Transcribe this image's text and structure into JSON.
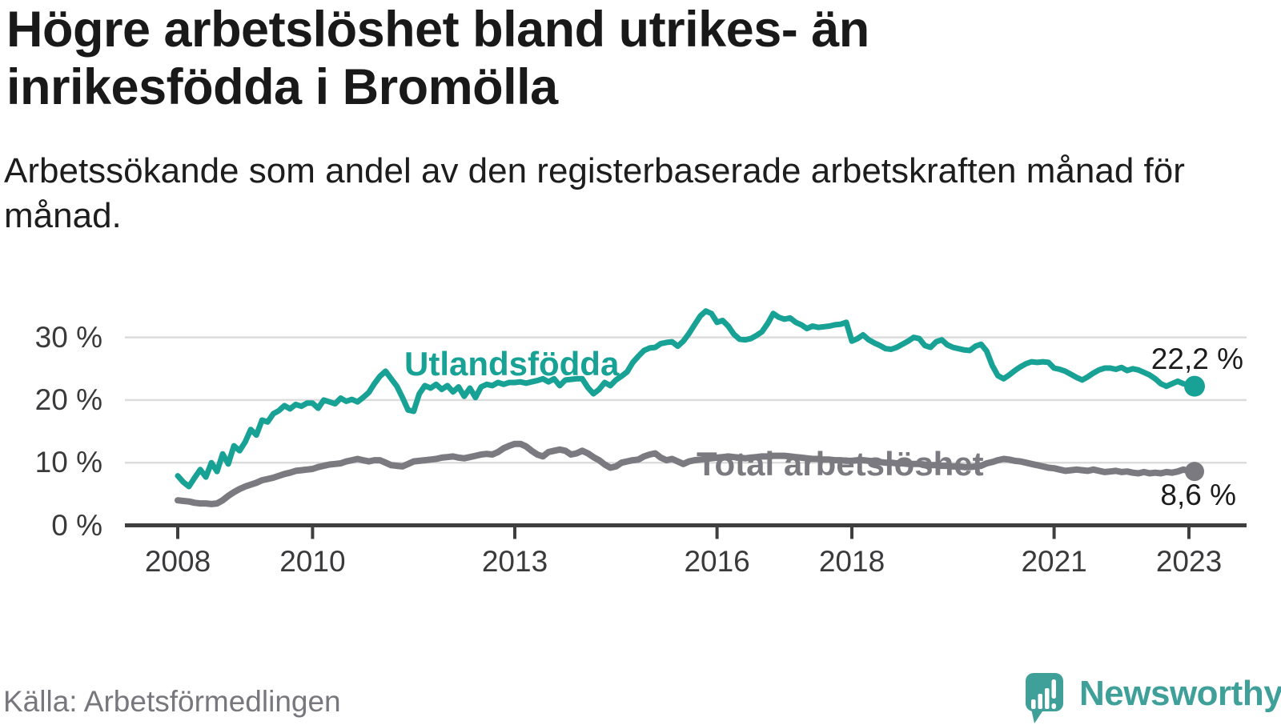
{
  "header": {
    "title": "Högre arbetslöshet bland utrikes- än inrikesfödda i Bromölla",
    "subtitle": "Arbetssökande som andel av den registerbaserade arbetskraften månad för månad."
  },
  "footer": {
    "source": "Källa: Arbetsförmedlingen",
    "brand": "Newsworthy",
    "brand_color": "#3fa09a",
    "brand_icon": "newsworthy-speech-bubble-bar-chart-icon"
  },
  "chart_data": {
    "type": "line",
    "unit": "%",
    "grid": "horizontal",
    "x_axis": {
      "start_year": 2008,
      "months_per_point": 1,
      "tick_years": [
        2008,
        2010,
        2013,
        2016,
        2018,
        2021,
        2023
      ],
      "tick_labels": [
        "2008",
        "2010",
        "2013",
        "2016",
        "2018",
        "2021",
        "2023"
      ]
    },
    "y_axis": {
      "ticks": [
        0,
        10,
        20,
        30
      ],
      "tick_labels": [
        "0 %",
        "10 %",
        "20 %",
        "30 %"
      ],
      "range": [
        0,
        36.5
      ]
    },
    "series": [
      {
        "name": "Utlandsfödda",
        "color": "#17a295",
        "start": "2008-01",
        "end": "2023-02",
        "end_value": 22.2,
        "end_label": "22,2 %",
        "values": [
          7.9,
          6.9,
          6.2,
          7.6,
          8.9,
          7.7,
          10.0,
          8.6,
          11.4,
          9.8,
          12.7,
          11.9,
          13.3,
          15.3,
          14.4,
          16.8,
          16.5,
          17.8,
          18.3,
          19.1,
          18.6,
          19.3,
          19.0,
          19.5,
          19.5,
          18.7,
          20.0,
          19.7,
          19.4,
          20.3,
          19.8,
          20.1,
          19.7,
          20.4,
          21.2,
          22.6,
          23.8,
          24.6,
          23.4,
          22.2,
          20.4,
          18.4,
          18.2,
          21.0,
          22.3,
          21.9,
          22.5,
          21.7,
          22.3,
          21.3,
          22.1,
          20.6,
          21.9,
          20.4,
          22.1,
          22.5,
          22.3,
          22.8,
          22.5,
          22.8,
          22.8,
          22.9,
          22.7,
          22.9,
          23.1,
          23.4,
          22.9,
          23.4,
          22.3,
          23.2,
          23.3,
          23.4,
          23.4,
          22.0,
          21.0,
          21.7,
          22.8,
          22.3,
          23.2,
          23.8,
          24.5,
          26.0,
          27.0,
          27.9,
          28.3,
          28.4,
          29.0,
          29.2,
          29.3,
          28.6,
          29.4,
          30.6,
          32.0,
          33.4,
          34.2,
          33.8,
          32.4,
          32.7,
          31.8,
          30.5,
          29.7,
          29.6,
          29.8,
          30.3,
          30.9,
          32.2,
          33.8,
          33.2,
          32.9,
          33.1,
          32.4,
          32.0,
          31.4,
          31.8,
          31.6,
          31.7,
          31.8,
          32.0,
          32.1,
          32.4,
          29.4,
          29.8,
          30.4,
          29.6,
          29.1,
          28.7,
          28.2,
          28.1,
          28.4,
          28.9,
          29.4,
          30.0,
          29.8,
          28.7,
          28.4,
          29.3,
          29.6,
          28.8,
          28.4,
          28.2,
          28.0,
          27.9,
          28.6,
          28.9,
          27.8,
          25.5,
          23.9,
          23.4,
          24.0,
          24.7,
          25.3,
          25.8,
          26.1,
          26.0,
          26.1,
          26.0,
          25.1,
          24.9,
          24.6,
          24.1,
          23.6,
          23.2,
          23.7,
          24.3,
          24.8,
          25.1,
          25.1,
          24.9,
          25.2,
          24.7,
          25.0,
          24.8,
          24.4,
          24.0,
          23.4,
          22.6,
          22.2,
          22.6,
          23.0,
          22.6,
          22.4,
          22.2
        ]
      },
      {
        "name": "Total arbetslöshet",
        "color": "#7a7a80",
        "start": "2008-01",
        "end": "2023-02",
        "end_value": 8.6,
        "end_label": "8,6 %",
        "values": [
          4.0,
          3.9,
          3.8,
          3.6,
          3.5,
          3.5,
          3.4,
          3.5,
          4.0,
          4.7,
          5.3,
          5.8,
          6.2,
          6.5,
          6.8,
          7.2,
          7.4,
          7.6,
          7.9,
          8.2,
          8.4,
          8.7,
          8.8,
          8.9,
          9.0,
          9.3,
          9.5,
          9.7,
          9.8,
          9.9,
          10.2,
          10.4,
          10.6,
          10.4,
          10.2,
          10.4,
          10.4,
          10.0,
          9.6,
          9.5,
          9.4,
          9.8,
          10.2,
          10.3,
          10.4,
          10.5,
          10.6,
          10.8,
          10.9,
          11.0,
          10.8,
          10.7,
          10.9,
          11.1,
          11.3,
          11.4,
          11.3,
          11.7,
          12.3,
          12.7,
          13.0,
          13.0,
          12.6,
          11.9,
          11.3,
          11.0,
          11.7,
          11.9,
          12.1,
          11.9,
          11.3,
          11.5,
          11.9,
          11.5,
          10.9,
          10.4,
          9.7,
          9.2,
          9.4,
          10.0,
          10.2,
          10.4,
          10.5,
          11.0,
          11.3,
          11.5,
          10.8,
          10.4,
          10.6,
          10.2,
          9.8,
          10.2,
          10.4,
          10.5,
          10.6,
          10.7,
          10.8,
          10.9,
          11.0,
          10.9,
          10.8,
          10.7,
          10.8,
          10.9,
          11.0,
          11.0,
          11.1,
          11.1,
          11.1,
          11.0,
          10.9,
          10.8,
          10.7,
          10.6,
          10.6,
          10.5,
          10.5,
          10.4,
          10.4,
          10.3,
          10.3,
          10.4,
          10.4,
          10.3,
          10.2,
          10.1,
          10.0,
          10.0,
          9.9,
          9.9,
          9.8,
          9.8,
          9.8,
          9.7,
          9.6,
          9.6,
          9.5,
          9.5,
          9.4,
          9.4,
          9.3,
          9.3,
          9.4,
          9.5,
          9.9,
          10.1,
          10.4,
          10.6,
          10.5,
          10.3,
          10.2,
          10.0,
          9.8,
          9.6,
          9.4,
          9.2,
          9.1,
          8.9,
          8.7,
          8.8,
          8.9,
          8.8,
          8.7,
          8.9,
          8.7,
          8.5,
          8.6,
          8.7,
          8.5,
          8.6,
          8.4,
          8.3,
          8.5,
          8.3,
          8.4,
          8.3,
          8.5,
          8.4,
          8.6,
          8.9,
          8.7,
          8.6
        ]
      }
    ]
  }
}
